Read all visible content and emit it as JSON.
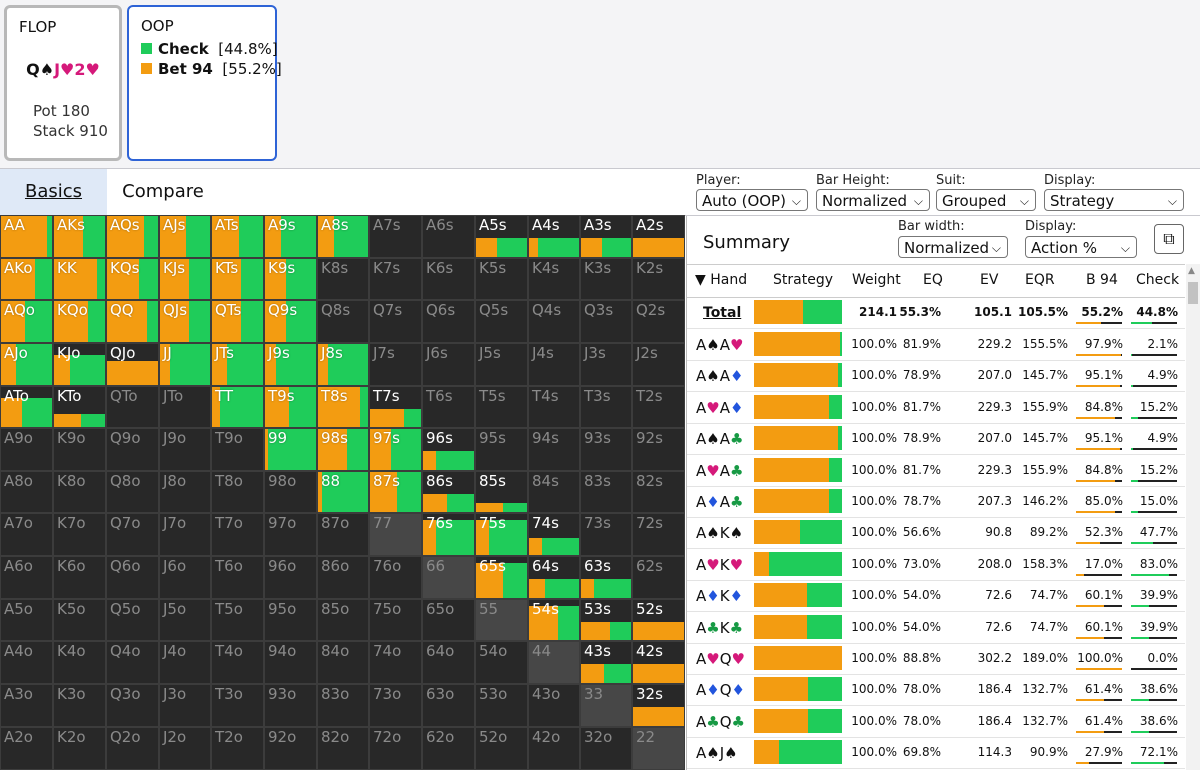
{
  "colors": {
    "check": "#1fcc5a",
    "bet": "#f39c11",
    "inactive_cell": "#282828",
    "diag_inactive": "#474747",
    "accent": "#2e63d6"
  },
  "flop": {
    "title": "FLOP",
    "board": [
      {
        "rank": "Q",
        "suit": "♠",
        "color": "blk"
      },
      {
        "rank": "J",
        "suit": "♥",
        "color": "red"
      },
      {
        "rank": "2",
        "suit": "♥",
        "color": "red"
      }
    ],
    "pot": "Pot 180",
    "stack": "Stack 910"
  },
  "oop": {
    "title": "OOP",
    "actions": [
      {
        "name": "Check",
        "pct": "[44.8%]"
      },
      {
        "name": "Bet 94",
        "pct": "[55.2%]"
      }
    ]
  },
  "tabs": {
    "basics": "Basics",
    "compare": "Compare"
  },
  "controls": {
    "player": {
      "label": "Player:",
      "value": "Auto (OOP)"
    },
    "bar_height": {
      "label": "Bar Height:",
      "value": "Normalized"
    },
    "suit": {
      "label": "Suit:",
      "value": "Grouped"
    },
    "display": {
      "label": "Display:",
      "value": "Strategy"
    },
    "bar_width": {
      "label": "Bar width:",
      "value": "Normalized"
    },
    "display2": {
      "label": "Display:",
      "value": "Action %"
    }
  },
  "summary": {
    "title": "Summary"
  },
  "table": {
    "headers": [
      "▼ Hand",
      "Strategy",
      "Weight",
      "EQ",
      "EV",
      "EQR",
      "B 94",
      "Check"
    ],
    "total": {
      "hand": "Total",
      "weight": "214.1",
      "eq": "55.3%",
      "ev": "105.1",
      "eqr": "105.5%",
      "b94": "55.2%",
      "check": "44.8%",
      "bet_frac": 0.552
    },
    "rows": [
      {
        "c1": {
          "r": "A",
          "s": "♠",
          "c": "blk"
        },
        "c2": {
          "r": "A",
          "s": "♥",
          "c": "red"
        },
        "weight": "100.0%",
        "eq": "81.9%",
        "ev": "229.2",
        "eqr": "155.5%",
        "b94": "97.9%",
        "check": "2.1%",
        "bet_frac": 0.979
      },
      {
        "c1": {
          "r": "A",
          "s": "♠",
          "c": "blk"
        },
        "c2": {
          "r": "A",
          "s": "♦",
          "c": "blue"
        },
        "weight": "100.0%",
        "eq": "78.9%",
        "ev": "207.0",
        "eqr": "145.7%",
        "b94": "95.1%",
        "check": "4.9%",
        "bet_frac": 0.951
      },
      {
        "c1": {
          "r": "A",
          "s": "♥",
          "c": "red"
        },
        "c2": {
          "r": "A",
          "s": "♦",
          "c": "blue"
        },
        "weight": "100.0%",
        "eq": "81.7%",
        "ev": "229.3",
        "eqr": "155.9%",
        "b94": "84.8%",
        "check": "15.2%",
        "bet_frac": 0.848
      },
      {
        "c1": {
          "r": "A",
          "s": "♠",
          "c": "blk"
        },
        "c2": {
          "r": "A",
          "s": "♣",
          "c": "green"
        },
        "weight": "100.0%",
        "eq": "78.9%",
        "ev": "207.0",
        "eqr": "145.7%",
        "b94": "95.1%",
        "check": "4.9%",
        "bet_frac": 0.951
      },
      {
        "c1": {
          "r": "A",
          "s": "♥",
          "c": "red"
        },
        "c2": {
          "r": "A",
          "s": "♣",
          "c": "green"
        },
        "weight": "100.0%",
        "eq": "81.7%",
        "ev": "229.3",
        "eqr": "155.9%",
        "b94": "84.8%",
        "check": "15.2%",
        "bet_frac": 0.848
      },
      {
        "c1": {
          "r": "A",
          "s": "♦",
          "c": "blue"
        },
        "c2": {
          "r": "A",
          "s": "♣",
          "c": "green"
        },
        "weight": "100.0%",
        "eq": "78.7%",
        "ev": "207.3",
        "eqr": "146.2%",
        "b94": "85.0%",
        "check": "15.0%",
        "bet_frac": 0.85
      },
      {
        "c1": {
          "r": "A",
          "s": "♠",
          "c": "blk"
        },
        "c2": {
          "r": "K",
          "s": "♠",
          "c": "blk"
        },
        "weight": "100.0%",
        "eq": "56.6%",
        "ev": "90.8",
        "eqr": "89.2%",
        "b94": "52.3%",
        "check": "47.7%",
        "bet_frac": 0.523
      },
      {
        "c1": {
          "r": "A",
          "s": "♥",
          "c": "red"
        },
        "c2": {
          "r": "K",
          "s": "♥",
          "c": "red"
        },
        "weight": "100.0%",
        "eq": "73.0%",
        "ev": "208.0",
        "eqr": "158.3%",
        "b94": "17.0%",
        "check": "83.0%",
        "bet_frac": 0.17
      },
      {
        "c1": {
          "r": "A",
          "s": "♦",
          "c": "blue"
        },
        "c2": {
          "r": "K",
          "s": "♦",
          "c": "blue"
        },
        "weight": "100.0%",
        "eq": "54.0%",
        "ev": "72.6",
        "eqr": "74.7%",
        "b94": "60.1%",
        "check": "39.9%",
        "bet_frac": 0.601
      },
      {
        "c1": {
          "r": "A",
          "s": "♣",
          "c": "green"
        },
        "c2": {
          "r": "K",
          "s": "♣",
          "c": "green"
        },
        "weight": "100.0%",
        "eq": "54.0%",
        "ev": "72.6",
        "eqr": "74.7%",
        "b94": "60.1%",
        "check": "39.9%",
        "bet_frac": 0.601
      },
      {
        "c1": {
          "r": "A",
          "s": "♥",
          "c": "red"
        },
        "c2": {
          "r": "Q",
          "s": "♥",
          "c": "red"
        },
        "weight": "100.0%",
        "eq": "88.8%",
        "ev": "302.2",
        "eqr": "189.0%",
        "b94": "100.0%",
        "check": "0.0%",
        "bet_frac": 1.0
      },
      {
        "c1": {
          "r": "A",
          "s": "♦",
          "c": "blue"
        },
        "c2": {
          "r": "Q",
          "s": "♦",
          "c": "blue"
        },
        "weight": "100.0%",
        "eq": "78.0%",
        "ev": "186.4",
        "eqr": "132.7%",
        "b94": "61.4%",
        "check": "38.6%",
        "bet_frac": 0.614
      },
      {
        "c1": {
          "r": "A",
          "s": "♣",
          "c": "green"
        },
        "c2": {
          "r": "Q",
          "s": "♣",
          "c": "green"
        },
        "weight": "100.0%",
        "eq": "78.0%",
        "ev": "186.4",
        "eqr": "132.7%",
        "b94": "61.4%",
        "check": "38.6%",
        "bet_frac": 0.614
      },
      {
        "c1": {
          "r": "A",
          "s": "♠",
          "c": "blk"
        },
        "c2": {
          "r": "J",
          "s": "♠",
          "c": "blk"
        },
        "weight": "100.0%",
        "eq": "69.8%",
        "ev": "114.3",
        "eqr": "90.9%",
        "b94": "27.9%",
        "check": "72.1%",
        "bet_frac": 0.279
      }
    ]
  },
  "grid": {
    "ranks": [
      "A",
      "K",
      "Q",
      "J",
      "T",
      "9",
      "8",
      "7",
      "6",
      "5",
      "4",
      "3",
      "2"
    ],
    "cells": {
      "AA": {
        "b": 0.86,
        "h": 1
      },
      "AKs": {
        "b": 0.55,
        "h": 1
      },
      "AQs": {
        "b": 0.7,
        "h": 1
      },
      "AJs": {
        "b": 0.5,
        "h": 1
      },
      "ATs": {
        "b": 0.5,
        "h": 1
      },
      "A9s": {
        "b": 0.3,
        "h": 1
      },
      "A8s": {
        "b": 0.3,
        "h": 1
      },
      "A5s": {
        "b": 0.4,
        "h": 0.44
      },
      "A4s": {
        "b": 0.18,
        "h": 0.44
      },
      "A3s": {
        "b": 0.4,
        "h": 0.44
      },
      "A2s": {
        "b": 1.0,
        "h": 0.44
      },
      "AKo": {
        "b": 0.65,
        "h": 1
      },
      "KK": {
        "b": 0.82,
        "h": 1
      },
      "KQs": {
        "b": 0.6,
        "h": 1
      },
      "KJs": {
        "b": 0.55,
        "h": 1
      },
      "KTs": {
        "b": 0.55,
        "h": 1
      },
      "K9s": {
        "b": 0.4,
        "h": 1
      },
      "AQo": {
        "b": 0.45,
        "h": 1
      },
      "KQo": {
        "b": 0.65,
        "h": 1
      },
      "QQ": {
        "b": 0.75,
        "h": 1
      },
      "QJs": {
        "b": 0.55,
        "h": 1
      },
      "QTs": {
        "b": 0.55,
        "h": 1
      },
      "Q9s": {
        "b": 0.4,
        "h": 1
      },
      "AJo": {
        "b": 0.28,
        "h": 1
      },
      "KJo": {
        "b": 0.3,
        "h": 0.7
      },
      "QJo": {
        "b": 1.0,
        "h": 0.55
      },
      "JJ": {
        "b": 0.2,
        "h": 1
      },
      "JTs": {
        "b": 0.28,
        "h": 1
      },
      "J9s": {
        "b": 0.2,
        "h": 1
      },
      "J8s": {
        "b": 0.2,
        "h": 1
      },
      "ATo": {
        "b": 0.4,
        "h": 0.7
      },
      "KTo": {
        "b": 0.5,
        "h": 0.3
      },
      "JTo": {
        "b": 0,
        "h": 0
      },
      "TT": {
        "b": 0.15,
        "h": 1
      },
      "T9s": {
        "b": 0.45,
        "h": 1
      },
      "T8s": {
        "b": 0.8,
        "h": 1
      },
      "T7s": {
        "b": 0.65,
        "h": 0.44
      },
      "99": {
        "b": 0.06,
        "h": 1
      },
      "98s": {
        "b": 0.55,
        "h": 1
      },
      "97s": {
        "b": 0.4,
        "h": 1
      },
      "96s": {
        "b": 0.25,
        "h": 0.44
      },
      "88": {
        "b": 0.08,
        "h": 1
      },
      "87s": {
        "b": 0.5,
        "h": 1
      },
      "86s": {
        "b": 0.45,
        "h": 0.44
      },
      "85s": {
        "b": 0.5,
        "h": 0.22
      },
      "76s": {
        "b": 0.25,
        "h": 0.82
      },
      "75s": {
        "b": 0.25,
        "h": 0.82
      },
      "74s": {
        "b": 0.25,
        "h": 0.4
      },
      "65s": {
        "b": 0.5,
        "h": 0.82
      },
      "64s": {
        "b": 0.3,
        "h": 0.44
      },
      "63s": {
        "b": 0.25,
        "h": 0.44
      },
      "54s": {
        "b": 0.55,
        "h": 0.82
      },
      "53s": {
        "b": 0.55,
        "h": 0.44
      },
      "52s": {
        "b": 1.0,
        "h": 0.44
      },
      "43s": {
        "b": 0.45,
        "h": 0.44
      },
      "42s": {
        "b": 1.0,
        "h": 0.44
      },
      "32s": {
        "b": 1.0,
        "h": 0.44
      }
    }
  }
}
